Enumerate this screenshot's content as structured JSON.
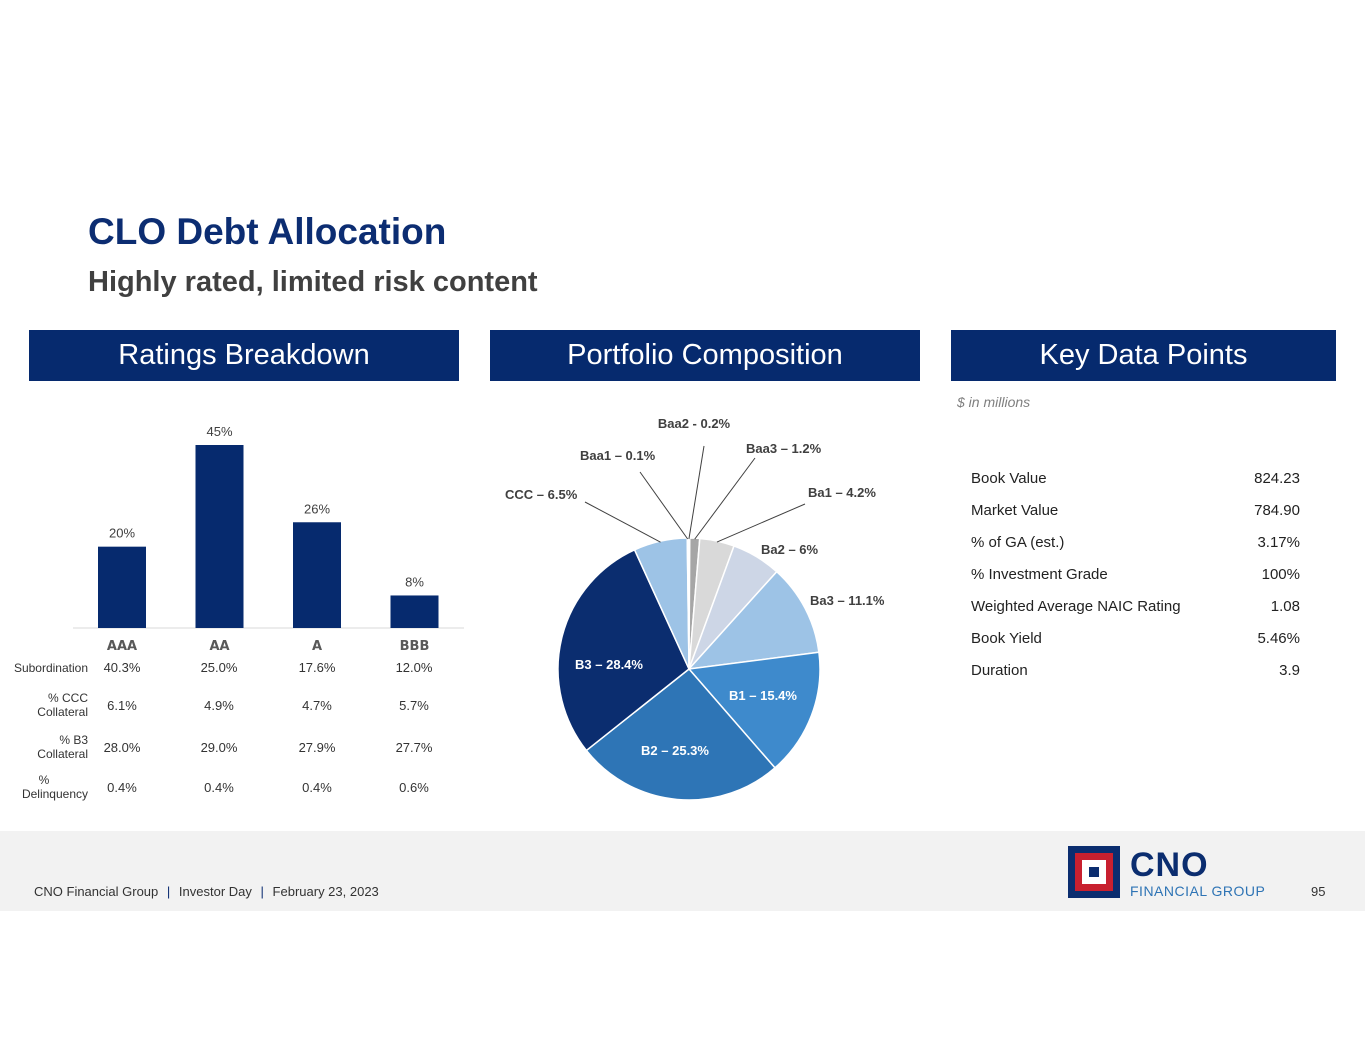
{
  "header": {
    "title": "CLO Debt Allocation",
    "subtitle": "Highly rated, limited risk content"
  },
  "panels": {
    "ratings_title": "Ratings Breakdown",
    "portfolio_title": "Portfolio Composition",
    "key_title": "Key Data Points"
  },
  "ratings_stats": {
    "rows": [
      {
        "label": "Subordination",
        "values": [
          "40.3%",
          "25.0%",
          "17.6%",
          "12.0%"
        ]
      },
      {
        "label": "% CCC Collateral",
        "values": [
          "6.1%",
          "4.9%",
          "4.7%",
          "5.7%"
        ]
      },
      {
        "label": "% B3 Collateral",
        "values": [
          "28.0%",
          "29.0%",
          "27.9%",
          "27.7%"
        ]
      },
      {
        "label": "% Delinquency",
        "values": [
          "0.4%",
          "0.4%",
          "0.4%",
          "0.6%"
        ]
      }
    ]
  },
  "key_data": {
    "units": "$ in millions",
    "rows": [
      {
        "label": "Book Value",
        "value": "824.23"
      },
      {
        "label": "Market Value",
        "value": "784.90"
      },
      {
        "label": "% of GA (est.)",
        "value": "3.17%"
      },
      {
        "label": "% Investment Grade",
        "value": "100%"
      },
      {
        "label": "Weighted Average NAIC Rating",
        "value": "1.08"
      },
      {
        "label": "Book Yield",
        "value": "5.46%"
      },
      {
        "label": "Duration",
        "value": "3.9"
      }
    ]
  },
  "footer": {
    "company": "CNO Financial Group",
    "event": "Investor Day",
    "date": "February 23, 2023",
    "separator": "|",
    "page": "95"
  },
  "logo": {
    "name": "CNO",
    "tagline": "FINANCIAL GROUP"
  },
  "colors": {
    "navy": "#062a6e",
    "bar": "#062a6e"
  },
  "chart_data": [
    {
      "type": "bar",
      "title": "Ratings Breakdown",
      "categories": [
        "AAA",
        "AA",
        "A",
        "BBB"
      ],
      "values": [
        20,
        45,
        26,
        8
      ],
      "data_labels": [
        "20%",
        "45%",
        "26%",
        "8%"
      ],
      "ylim": [
        0,
        45
      ],
      "grid": false
    },
    {
      "type": "pie",
      "title": "Portfolio Composition",
      "slices": [
        {
          "label": "Baa2 - 0.2%",
          "value": 0.2,
          "color": "#ffffff"
        },
        {
          "label": "Baa3 – 1.2%",
          "value": 1.2,
          "color": "#a6a6a6"
        },
        {
          "label": "Ba1 – 4.2%",
          "value": 4.2,
          "color": "#d9d9d9"
        },
        {
          "label": "Ba2 – 6%",
          "value": 6.0,
          "color": "#cdd6e6"
        },
        {
          "label": "Ba3 – 11.1%",
          "value": 11.1,
          "color": "#9dc3e6"
        },
        {
          "label": "B1 – 15.4%",
          "value": 15.4,
          "color": "#3e8acc"
        },
        {
          "label": "B2 – 25.3%",
          "value": 25.3,
          "color": "#2e75b6"
        },
        {
          "label": "B3 – 28.4%",
          "value": 28.4,
          "color": "#0b2d6f"
        },
        {
          "label": "CCC – 6.5%",
          "value": 6.5,
          "color": "#9dc3e6"
        },
        {
          "label": "Baa1 – 0.1%",
          "value": 0.1,
          "color": "#ffffff"
        }
      ]
    }
  ]
}
